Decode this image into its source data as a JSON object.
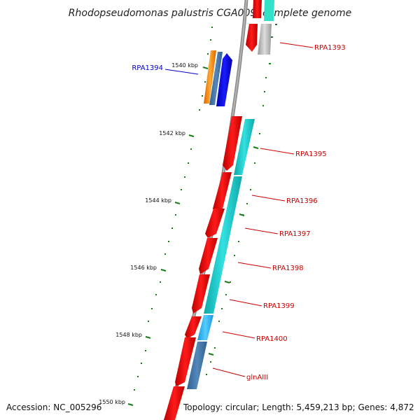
{
  "title": "Rhodopseudomonas palustris CGA009, complete genome",
  "footer": {
    "accession": "Accession: NC_005296",
    "summary": "Topology: circular; Length: 5,459,213 bp; Genes: 4,872"
  },
  "scale_labels": [
    "1540 kbp",
    "1542 kbp",
    "1544 kbp",
    "1546 kbp",
    "1548 kbp",
    "1550 kbp"
  ],
  "gene_labels": [
    {
      "name": "RPA1394",
      "color": "#0000cc"
    },
    {
      "name": "RPA1393",
      "color": "#cc0000"
    },
    {
      "name": "RPA1395",
      "color": "#cc0000"
    },
    {
      "name": "RPA1396",
      "color": "#cc0000"
    },
    {
      "name": "RPA1397",
      "color": "#cc0000"
    },
    {
      "name": "RPA1398",
      "color": "#cc0000"
    },
    {
      "name": "RPA1399",
      "color": "#cc0000"
    },
    {
      "name": "RPA1400",
      "color": "#cc0000"
    },
    {
      "name": "glnAIII",
      "color": "#cc0000"
    }
  ],
  "colors": {
    "backbone": "#8a8a8a",
    "forward_cds": "#ff0000",
    "reverse_cds": "#0000ff",
    "tick_mark": "#1a7a1a",
    "cyan_feature": "#20d0d0",
    "light_blue_feature": "#33bbff",
    "steel_blue_feature": "#4477aa",
    "orange_feature": "#ff8800",
    "gray_feature": "#aaaaaa"
  }
}
